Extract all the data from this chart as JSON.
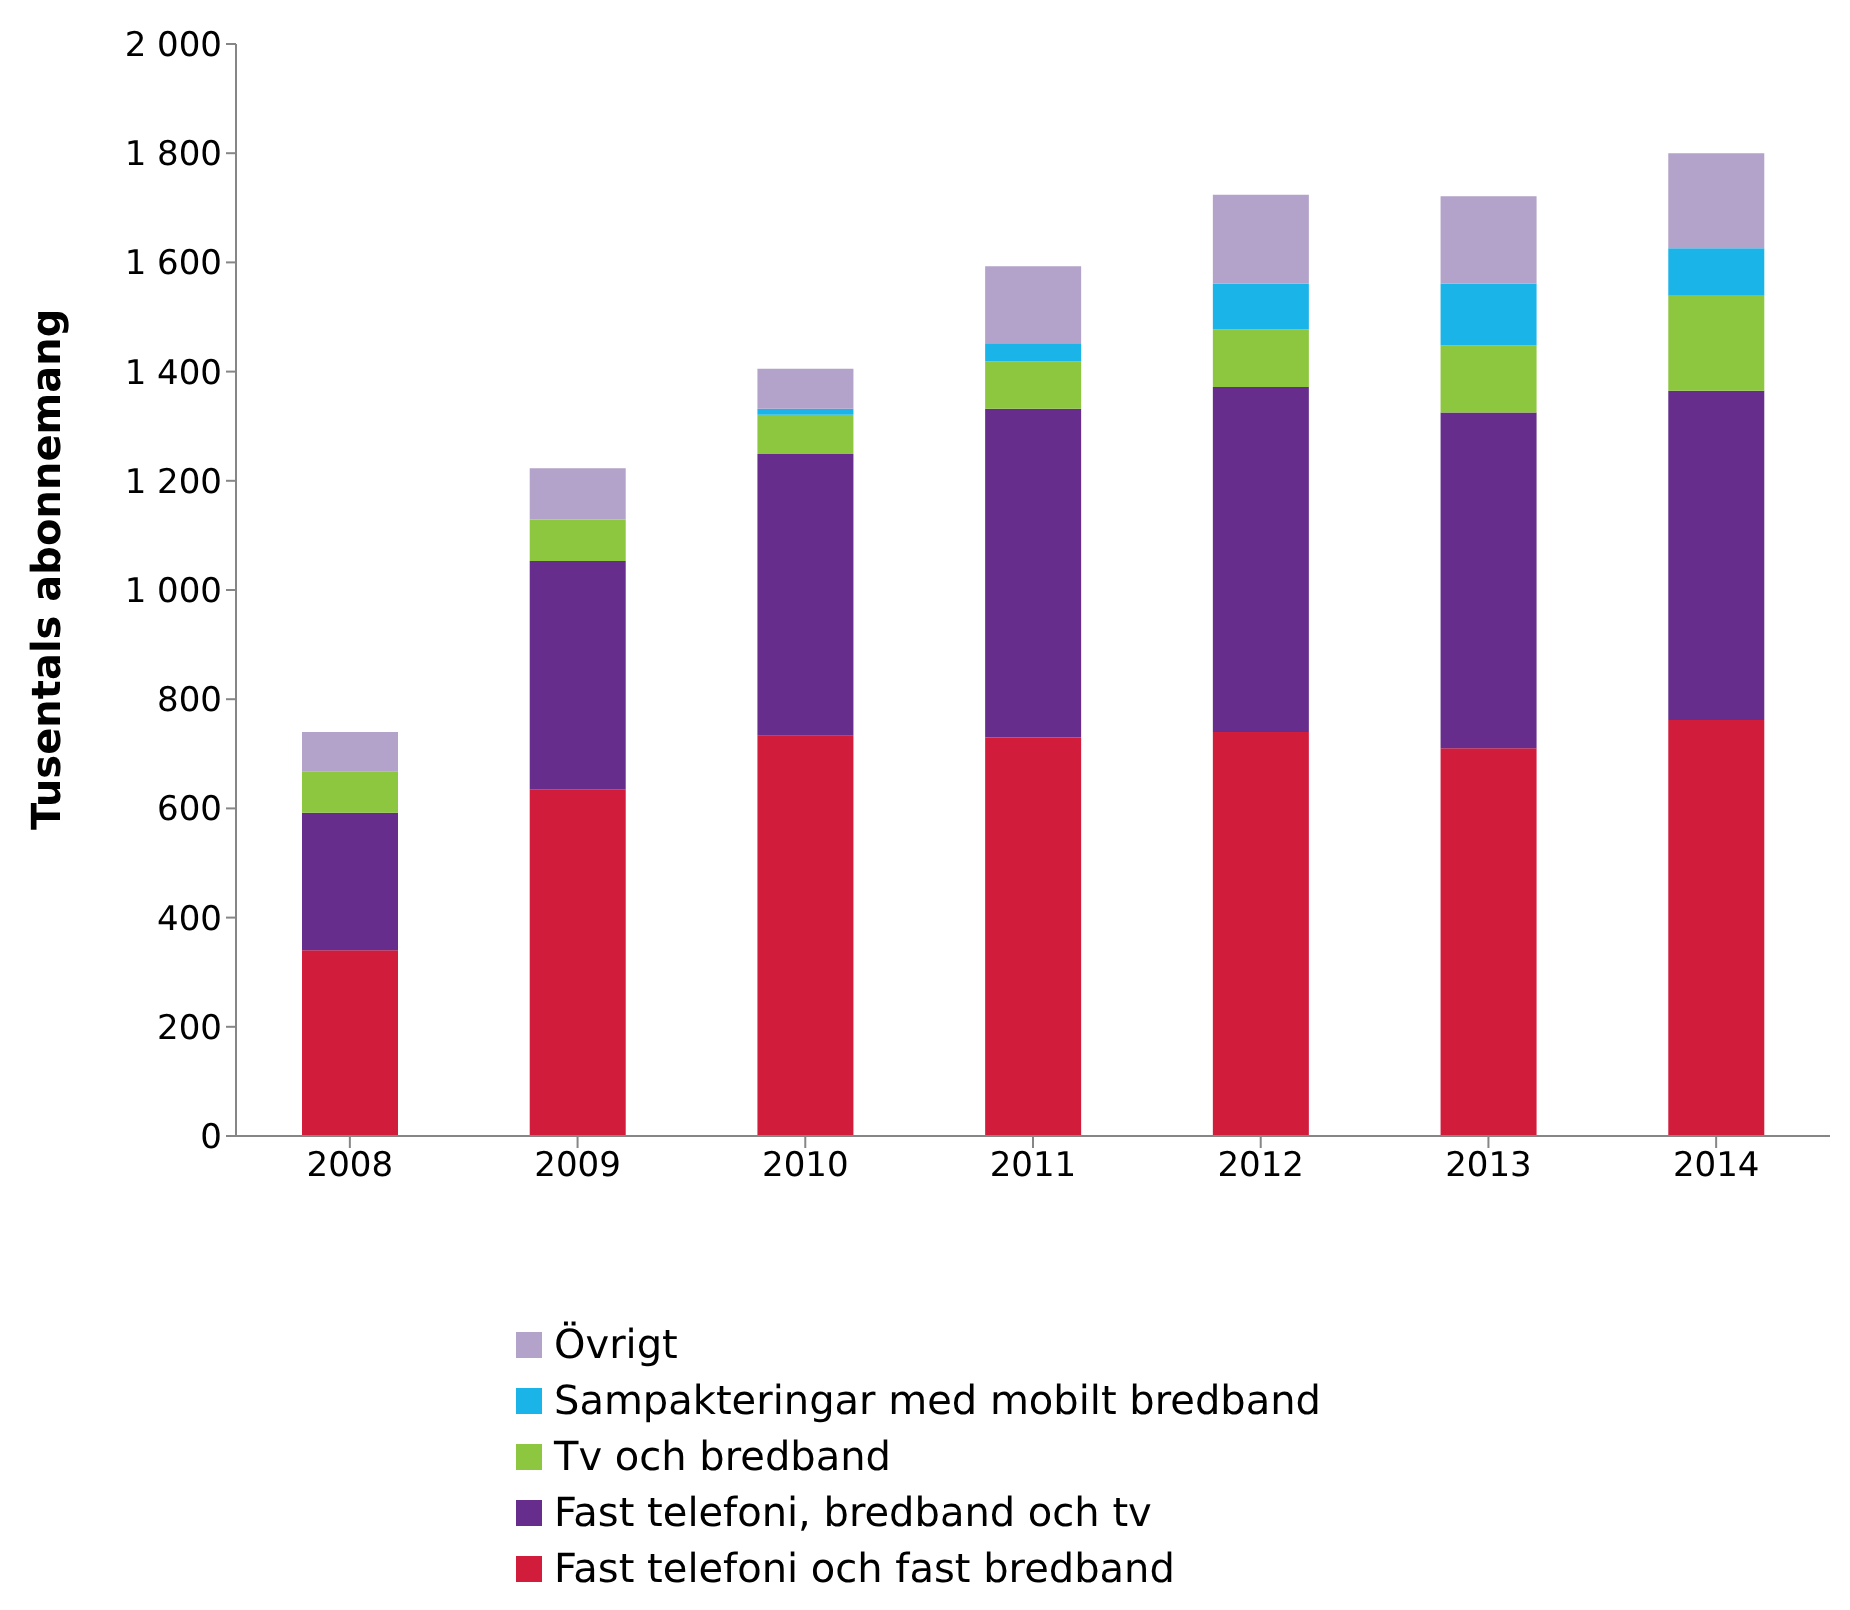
{
  "chart_data": {
    "type": "bar",
    "stacked": true,
    "ylabel": "Tusentals abonnemang",
    "categories": [
      "2008",
      "2009",
      "2010",
      "2011",
      "2012",
      "2013",
      "2014"
    ],
    "series": [
      {
        "name": "Fast telefoni och fast bredband",
        "color": "#d21c3c",
        "values": [
          340,
          635,
          733,
          730,
          740,
          710,
          762
        ]
      },
      {
        "name": "Fast telefoni, bredband och tv",
        "color": "#662d8c",
        "values": [
          252,
          418,
          516,
          602,
          632,
          615,
          603
        ]
      },
      {
        "name": "Tv och bredband",
        "color": "#8dc63f",
        "values": [
          76,
          76,
          72,
          87,
          105,
          123,
          174
        ]
      },
      {
        "name": "Sampakteringar med mobilt bredband",
        "color": "#1ab4e8",
        "values": [
          0,
          0,
          11,
          33,
          84,
          113,
          87
        ]
      },
      {
        "name": "Övrigt",
        "color": "#b3a2c9",
        "values": [
          72,
          94,
          73,
          141,
          163,
          160,
          174
        ]
      }
    ],
    "ylim": [
      0,
      2000
    ],
    "yticks": [
      {
        "value": 0,
        "label": "0"
      },
      {
        "value": 200,
        "label": "200"
      },
      {
        "value": 400,
        "label": "400"
      },
      {
        "value": 600,
        "label": "600"
      },
      {
        "value": 800,
        "label": "800"
      },
      {
        "value": 1000,
        "label": "1 000"
      },
      {
        "value": 1200,
        "label": "1 200"
      },
      {
        "value": 1400,
        "label": "1 400"
      },
      {
        "value": 1600,
        "label": "1 600"
      },
      {
        "value": 1800,
        "label": "1 800"
      },
      {
        "value": 2000,
        "label": "2 000"
      }
    ],
    "grid": false,
    "legend": "bottom"
  }
}
